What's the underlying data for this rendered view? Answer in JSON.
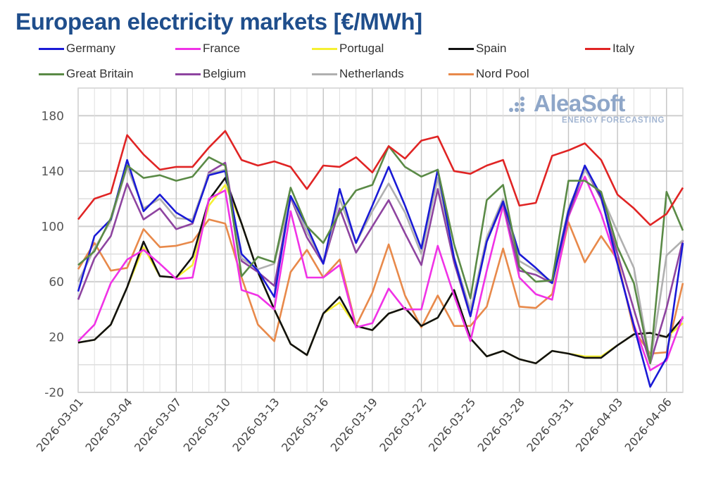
{
  "chart_data": {
    "type": "line",
    "title": "European electricity markets [€/MWh]",
    "xlabel": "",
    "ylabel": "",
    "ylim": [
      -20,
      200
    ],
    "yticks": [
      -20,
      20,
      60,
      100,
      140,
      180
    ],
    "y_tick_labels": [
      "-20",
      "20",
      "60",
      "100",
      "140",
      "180"
    ],
    "grid": true,
    "legend_position": "top",
    "x": [
      "2026-03-01",
      "2026-03-02",
      "2026-03-03",
      "2026-03-04",
      "2026-03-05",
      "2026-03-06",
      "2026-03-07",
      "2026-03-08",
      "2026-03-09",
      "2026-03-10",
      "2026-03-11",
      "2026-03-12",
      "2026-03-13",
      "2026-03-14",
      "2026-03-15",
      "2026-03-16",
      "2026-03-17",
      "2026-03-18",
      "2026-03-19",
      "2026-03-20",
      "2026-03-21",
      "2026-03-22",
      "2026-03-23",
      "2026-03-24",
      "2026-03-25",
      "2026-03-26",
      "2026-03-27",
      "2026-03-28",
      "2026-03-29",
      "2026-03-30",
      "2026-03-31",
      "2026-04-01",
      "2026-04-02",
      "2026-04-03",
      "2026-04-04",
      "2026-04-05",
      "2026-04-06",
      "2026-04-07"
    ],
    "x_tick_labels": [
      "2026-03-01",
      "2026-03-04",
      "2026-03-07",
      "2026-03-10",
      "2026-03-13",
      "2026-03-16",
      "2026-03-19",
      "2026-03-22",
      "2026-03-25",
      "2026-03-28",
      "2026-03-31",
      "2026-04-03",
      "2026-04-06"
    ],
    "series": [
      {
        "name": "Nord Pool",
        "color": "#e8894a",
        "values": [
          69,
          88,
          68,
          70,
          98,
          85,
          86,
          89,
          105,
          102,
          63,
          29,
          17,
          67,
          83,
          63,
          76,
          28,
          52,
          87,
          50,
          27,
          50,
          28,
          28,
          42,
          84,
          42,
          41,
          51,
          103,
          74,
          93,
          76,
          25,
          8,
          9,
          59
        ]
      },
      {
        "name": "Portugal",
        "color": "#f5f032",
        "values": [
          16,
          18,
          29,
          56,
          85,
          64,
          63,
          72,
          115,
          130,
          102,
          67,
          40,
          15,
          7,
          37,
          45,
          28,
          25,
          37,
          41,
          28,
          34,
          54,
          19,
          6,
          10,
          4,
          1,
          10,
          8,
          6,
          6,
          14,
          22,
          23,
          20,
          30
        ]
      },
      {
        "name": "Spain",
        "color": "#111111",
        "values": [
          16,
          18,
          29,
          56,
          89,
          64,
          63,
          78,
          119,
          135,
          102,
          67,
          40,
          15,
          7,
          37,
          49,
          28,
          25,
          37,
          41,
          28,
          34,
          54,
          19,
          6,
          10,
          4,
          1,
          10,
          8,
          5,
          5,
          14,
          22,
          23,
          20,
          34
        ]
      },
      {
        "name": "France",
        "color": "#f032e6",
        "values": [
          17,
          29,
          59,
          76,
          83,
          73,
          62,
          63,
          120,
          126,
          54,
          50,
          40,
          111,
          63,
          63,
          72,
          27,
          30,
          55,
          40,
          40,
          86,
          50,
          17,
          68,
          115,
          63,
          51,
          47,
          107,
          136,
          109,
          73,
          29,
          -4,
          3,
          35
        ]
      },
      {
        "name": "Belgium",
        "color": "#8e44a0",
        "values": [
          47,
          77,
          93,
          131,
          105,
          113,
          98,
          102,
          139,
          146,
          75,
          67,
          57,
          121,
          92,
          73,
          113,
          81,
          100,
          119,
          95,
          72,
          127,
          74,
          35,
          89,
          117,
          68,
          65,
          59,
          108,
          142,
          120,
          80,
          40,
          1,
          41,
          90
        ]
      },
      {
        "name": "Netherlands",
        "color": "#b0b0b0",
        "values": [
          60,
          84,
          104,
          143,
          113,
          120,
          106,
          105,
          138,
          141,
          77,
          69,
          73,
          122,
          96,
          74,
          120,
          88,
          111,
          131,
          110,
          80,
          135,
          78,
          39,
          92,
          120,
          75,
          68,
          60,
          113,
          141,
          123,
          96,
          70,
          1,
          79,
          90
        ]
      },
      {
        "name": "Germany",
        "color": "#1a1ad6",
        "values": [
          53,
          93,
          105,
          148,
          111,
          123,
          110,
          103,
          137,
          140,
          80,
          68,
          49,
          122,
          100,
          73,
          127,
          88,
          115,
          143,
          115,
          84,
          141,
          77,
          35,
          89,
          118,
          80,
          70,
          59,
          111,
          144,
          122,
          73,
          28,
          -16,
          5,
          88
        ]
      },
      {
        "name": "Great Britain",
        "color": "#5a8a46",
        "values": [
          72,
          82,
          106,
          144,
          135,
          137,
          133,
          136,
          150,
          144,
          64,
          78,
          74,
          128,
          100,
          88,
          110,
          126,
          130,
          158,
          143,
          136,
          141,
          87,
          48,
          119,
          130,
          71,
          60,
          61,
          133,
          133,
          125,
          85,
          59,
          1,
          125,
          97
        ]
      },
      {
        "name": "Italy",
        "color": "#e02424",
        "values": [
          105,
          120,
          124,
          166,
          152,
          141,
          143,
          143,
          157,
          169,
          148,
          144,
          147,
          143,
          127,
          144,
          143,
          150,
          139,
          158,
          149,
          162,
          165,
          140,
          138,
          144,
          148,
          115,
          117,
          151,
          155,
          160,
          148,
          123,
          113,
          101,
          109,
          128
        ]
      }
    ]
  },
  "legend": [
    {
      "name": "Germany",
      "color": "#1a1ad6"
    },
    {
      "name": "France",
      "color": "#f032e6"
    },
    {
      "name": "Portugal",
      "color": "#f5f032"
    },
    {
      "name": "Spain",
      "color": "#111111"
    },
    {
      "name": "Italy",
      "color": "#e02424"
    },
    {
      "name": "Great Britain",
      "color": "#5a8a46"
    },
    {
      "name": "Belgium",
      "color": "#8e44a0"
    },
    {
      "name": "Netherlands",
      "color": "#b0b0b0"
    },
    {
      "name": "Nord Pool",
      "color": "#e8894a"
    }
  ],
  "watermark": {
    "name": "AleaSoft",
    "tagline": "ENERGY FORECASTING"
  },
  "colors": {
    "title": "#1f4e8c",
    "grid": "#d4d4d4",
    "watermark": "#8ea6c8"
  }
}
